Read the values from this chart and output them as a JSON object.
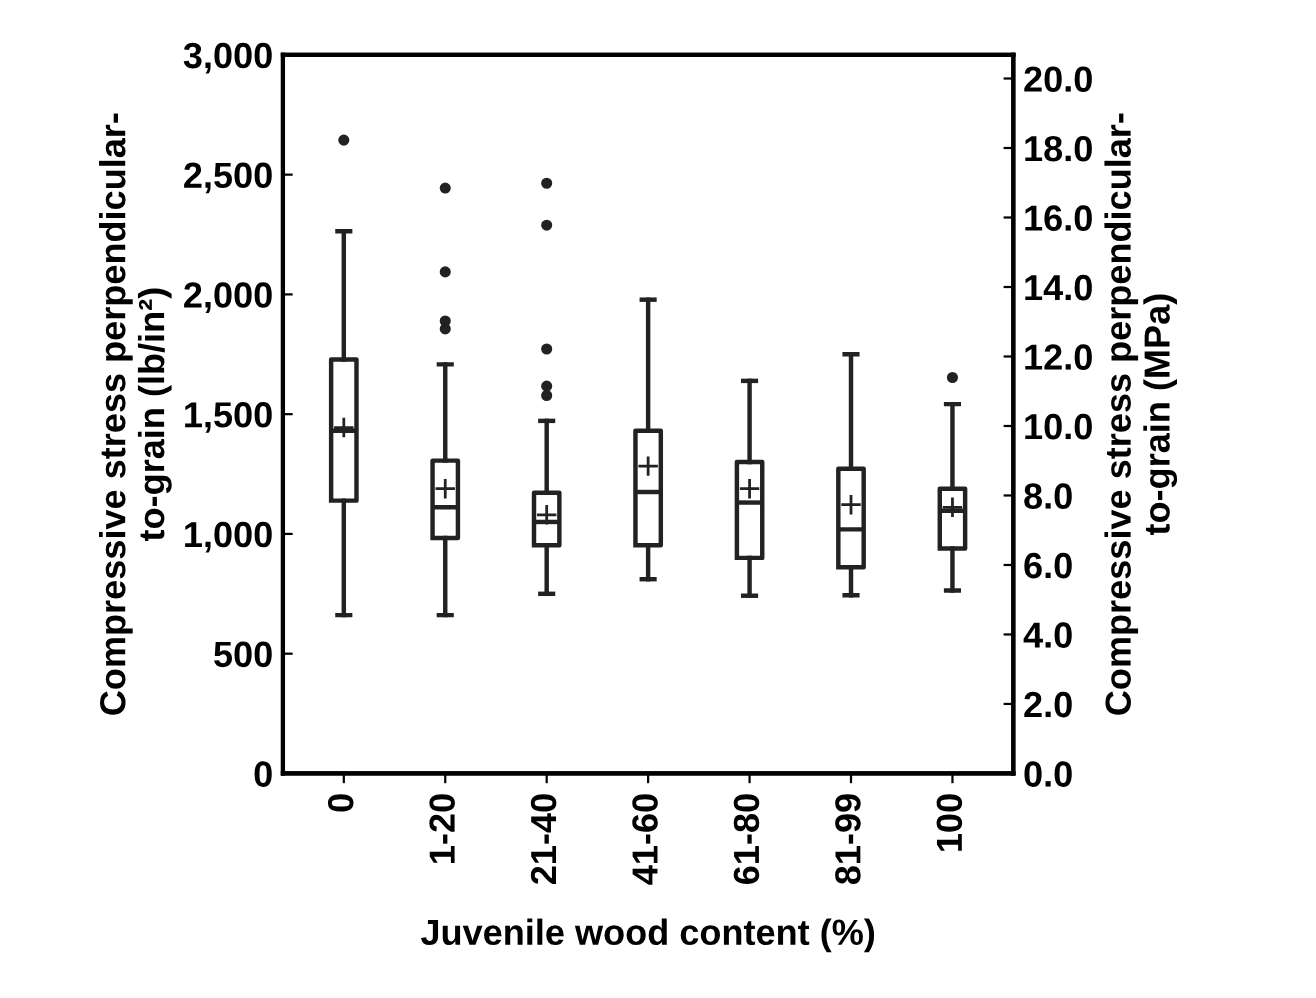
{
  "chart_data": {
    "type": "box",
    "xlabel": "Juvenile wood content (%)",
    "ylabel": "Compressive stress perpendicular-\nto-grain (lb/in²)",
    "y2label": "Compressive stress perpendicular-\nto-grain (MPa)",
    "categories": [
      "0",
      "1-20",
      "21-40",
      "41-60",
      "61-80",
      "81-99",
      "100"
    ],
    "boxes": [
      {
        "low": 661,
        "q1": 1139,
        "median": 1431,
        "q3": 1728,
        "high": 2264,
        "mean": 1444,
        "outliers": [
          2644
        ]
      },
      {
        "low": 661,
        "q1": 983,
        "median": 1111,
        "q3": 1306,
        "high": 1708,
        "mean": 1189,
        "outliers": [
          2444,
          2094,
          1889,
          1856
        ]
      },
      {
        "low": 750,
        "q1": 953,
        "median": 1050,
        "q3": 1172,
        "high": 1472,
        "mean": 1080,
        "outliers": [
          2464,
          2289,
          1772,
          1617,
          1578
        ]
      },
      {
        "low": 811,
        "q1": 953,
        "median": 1175,
        "q3": 1431,
        "high": 1978,
        "mean": 1283
      },
      {
        "low": 742,
        "q1": 900,
        "median": 1131,
        "q3": 1300,
        "high": 1639,
        "mean": 1189
      },
      {
        "low": 744,
        "q1": 861,
        "median": 1019,
        "q3": 1272,
        "high": 1750,
        "mean": 1122
      },
      {
        "low": 764,
        "q1": 939,
        "median": 1097,
        "q3": 1189,
        "high": 1542,
        "mean": 1111,
        "outliers": [
          1653
        ]
      }
    ],
    "ylim": [
      0,
      3000
    ],
    "yticks": [
      0,
      {
        "value": 500,
        "label": "500"
      },
      {
        "value": 1000,
        "label": "1,000"
      },
      {
        "value": 1500,
        "label": "1,500"
      },
      {
        "value": 2000,
        "label": "2,000"
      },
      {
        "value": 2500,
        "label": "2,500"
      },
      {
        "value": 3000,
        "label": "3,000"
      }
    ],
    "y2lim": [
      0,
      20.68
    ],
    "y2ticks": [
      {
        "value": 0,
        "label": "0.0"
      },
      {
        "value": 2,
        "label": "2.0"
      },
      {
        "value": 4,
        "label": "4.0"
      },
      {
        "value": 6,
        "label": "6.0"
      },
      {
        "value": 8,
        "label": "8.0"
      },
      {
        "value": 10,
        "label": "10.0"
      },
      {
        "value": 12,
        "label": "12.0"
      },
      {
        "value": 14,
        "label": "14.0"
      },
      {
        "value": 16,
        "label": "16.0"
      },
      {
        "value": 18,
        "label": "18.0"
      },
      {
        "value": 20,
        "label": "20.0"
      }
    ],
    "grid": false,
    "color": "#222222"
  }
}
